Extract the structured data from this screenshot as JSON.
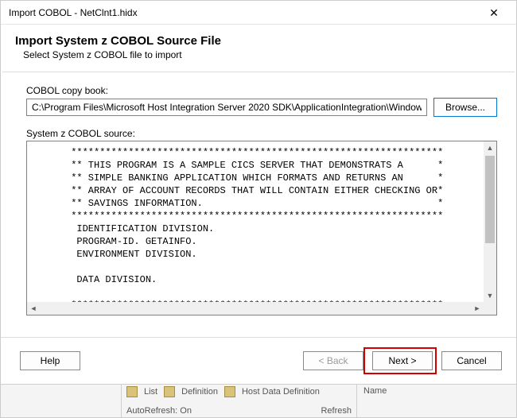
{
  "window": {
    "title": "Import COBOL - NetClnt1.hidx",
    "close_glyph": "✕"
  },
  "header": {
    "title": "Import System z COBOL Source File",
    "subtitle": "Select System z COBOL file to import"
  },
  "copybook": {
    "label": "COBOL copy book:",
    "path": "C:\\Program Files\\Microsoft Host Integration Server 2020 SDK\\ApplicationIntegration\\WindowsInitiated\\Cics",
    "browse_label": "Browse..."
  },
  "source": {
    "label": "System z COBOL source:",
    "text": "      *****************************************************************\n      ** THIS PROGRAM IS A SAMPLE CICS SERVER THAT DEMONSTRATS A      *\n      ** SIMPLE BANKING APPLICATION WHICH FORMATS AND RETURNS AN      *\n      ** ARRAY OF ACCOUNT RECORDS THAT WILL CONTAIN EITHER CHECKING OR*\n      ** SAVINGS INFORMATION.                                         *\n      *****************************************************************\n       IDENTIFICATION DIVISION.\n       PROGRAM-ID. GETAINFO.\n       ENVIRONMENT DIVISION.\n\n       DATA DIVISION.\n\n      *****************************************************************\n      ** VARIABLES FOR INTERACTING WITH THE TERMINAL SESSION          *"
  },
  "footer": {
    "help": "Help",
    "back": "< Back",
    "next": "Next >",
    "cancel": "Cancel"
  },
  "under": {
    "list_label": "List",
    "def_label": "Definition",
    "hostdef_label": "Host Data Definition",
    "autorefresh_label": "AutoRefresh: On",
    "refresh_label": "Refresh",
    "name_label": "Name"
  }
}
